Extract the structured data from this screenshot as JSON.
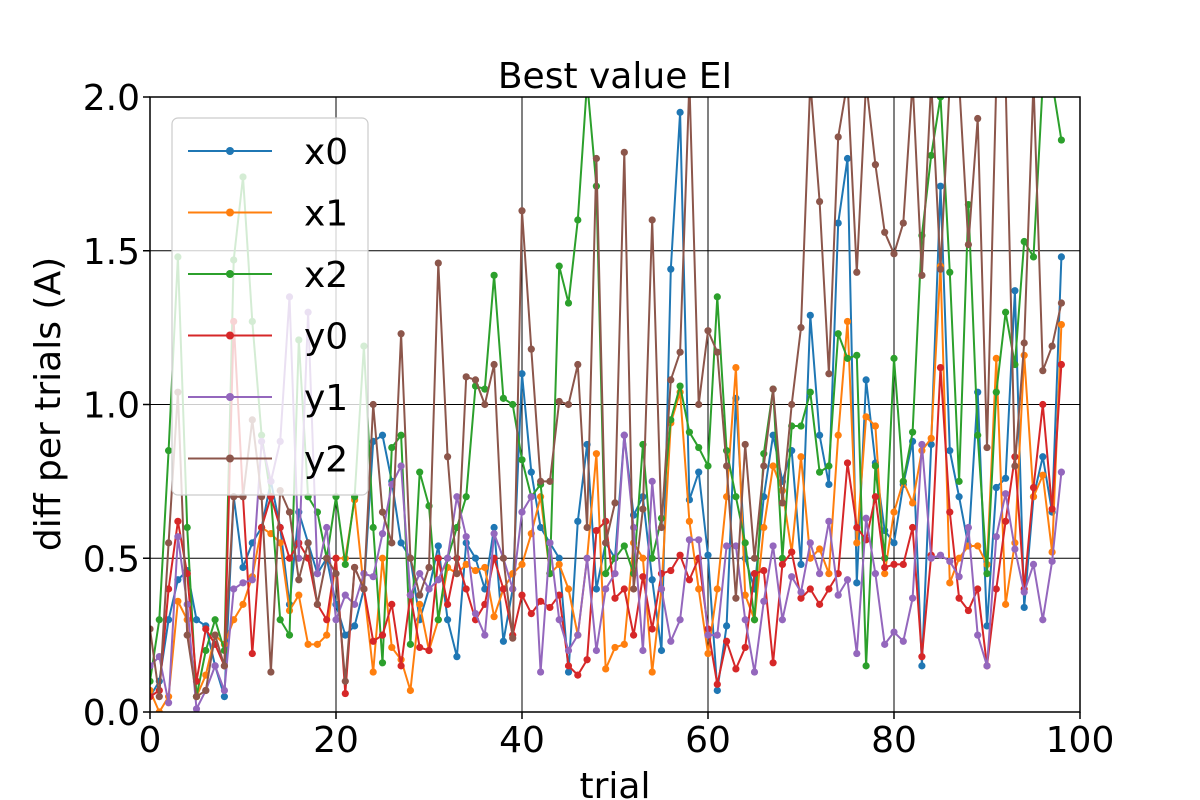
{
  "chart_data": {
    "type": "line",
    "title": "Best value EI",
    "xlabel": "trial",
    "ylabel": "diff per trials (A)",
    "xlim": [
      0,
      100
    ],
    "ylim": [
      0,
      2.0
    ],
    "xticks": [
      0,
      20,
      40,
      60,
      80,
      100
    ],
    "xtick_labels": [
      "0",
      "20",
      "40",
      "60",
      "80",
      "100"
    ],
    "yticks": [
      0.0,
      0.5,
      1.0,
      1.5,
      2.0
    ],
    "ytick_labels": [
      "0.0",
      "0.5",
      "1.0",
      "1.5",
      "2.0"
    ],
    "grid": true,
    "legend_position": "upper-left",
    "x": [
      0,
      1,
      2,
      3,
      4,
      5,
      6,
      7,
      8,
      9,
      10,
      11,
      12,
      13,
      14,
      15,
      16,
      17,
      18,
      19,
      20,
      21,
      22,
      23,
      24,
      25,
      26,
      27,
      28,
      29,
      30,
      31,
      32,
      33,
      34,
      35,
      36,
      37,
      38,
      39,
      40,
      41,
      42,
      43,
      44,
      45,
      46,
      47,
      48,
      49,
      50,
      51,
      52,
      53,
      54,
      55,
      56,
      57,
      58,
      59,
      60,
      61,
      62,
      63,
      64,
      65,
      66,
      67,
      68,
      69,
      70,
      71,
      72,
      73,
      74,
      75,
      76,
      77,
      78,
      79,
      80,
      81,
      82,
      83,
      84,
      85,
      86,
      87,
      88,
      89,
      90,
      91,
      92,
      93,
      94,
      95,
      96,
      97,
      98
    ],
    "series": [
      {
        "name": "x0",
        "color": "#1f77b4",
        "values": [
          0.05,
          0.1,
          0.3,
          0.43,
          0.46,
          0.3,
          0.28,
          0.15,
          0.05,
          0.7,
          0.47,
          0.55,
          0.6,
          0.75,
          0.6,
          0.35,
          0.65,
          0.55,
          0.45,
          0.5,
          0.35,
          0.25,
          0.28,
          0.4,
          0.88,
          0.9,
          0.75,
          0.55,
          0.5,
          0.3,
          0.4,
          0.54,
          0.3,
          0.18,
          0.55,
          0.5,
          0.4,
          0.6,
          0.23,
          0.4,
          1.1,
          0.78,
          0.6,
          0.55,
          0.5,
          0.13,
          0.62,
          0.87,
          0.4,
          0.55,
          0.5,
          0.9,
          0.64,
          0.7,
          0.43,
          0.2,
          1.44,
          1.95,
          0.69,
          0.78,
          0.51,
          0.07,
          0.28,
          1.02,
          0.5,
          0.4,
          0.7,
          0.9,
          0.75,
          0.85,
          0.48,
          1.29,
          0.9,
          0.74,
          1.59,
          1.8,
          0.42,
          1.08,
          0.81,
          0.59,
          0.55,
          0.74,
          0.88,
          0.15,
          0.87,
          1.71,
          0.85,
          0.7,
          0.54,
          1.04,
          0.28,
          0.73,
          0.76,
          1.37,
          0.34,
          0.7,
          0.83,
          0.65,
          1.48
        ]
      },
      {
        "name": "x1",
        "color": "#ff7f0e",
        "values": [
          0.07,
          0.0,
          0.05,
          0.36,
          0.3,
          0.05,
          0.12,
          0.25,
          0.22,
          0.3,
          0.35,
          0.44,
          0.6,
          0.58,
          0.55,
          0.33,
          0.38,
          0.22,
          0.22,
          0.25,
          0.5,
          0.5,
          0.69,
          0.4,
          0.13,
          0.5,
          0.21,
          0.17,
          0.07,
          0.35,
          0.2,
          0.3,
          0.47,
          0.45,
          0.48,
          0.46,
          0.47,
          0.31,
          0.4,
          0.45,
          0.48,
          0.58,
          0.7,
          0.45,
          0.48,
          0.4,
          0.25,
          0.5,
          0.84,
          0.14,
          0.21,
          0.22,
          0.55,
          0.5,
          0.13,
          0.4,
          0.94,
          1.04,
          0.62,
          0.4,
          0.19,
          0.4,
          0.7,
          1.12,
          0.38,
          0.3,
          0.6,
          0.8,
          0.72,
          0.52,
          0.83,
          0.5,
          0.53,
          0.45,
          0.9,
          1.27,
          0.55,
          0.96,
          0.93,
          0.45,
          0.65,
          0.75,
          0.68,
          0.85,
          0.89,
          1.45,
          0.42,
          0.5,
          0.54,
          0.54,
          0.48,
          1.15,
          0.35,
          0.55,
          1.16,
          0.7,
          0.77,
          0.52,
          1.26
        ]
      },
      {
        "name": "x2",
        "color": "#2ca02c",
        "values": [
          0.1,
          0.3,
          0.85,
          1.48,
          0.6,
          0.05,
          0.2,
          0.3,
          0.2,
          1.47,
          1.74,
          1.27,
          0.9,
          0.7,
          0.3,
          0.25,
          1.21,
          0.7,
          0.65,
          0.5,
          0.7,
          0.48,
          0.7,
          1.19,
          0.6,
          0.16,
          0.86,
          0.9,
          0.22,
          0.78,
          0.67,
          0.3,
          0.5,
          0.6,
          0.7,
          1.06,
          1.05,
          1.42,
          1.02,
          1.0,
          0.82,
          0.7,
          0.74,
          0.45,
          1.45,
          1.33,
          1.6,
          2.05,
          1.71,
          0.45,
          0.5,
          0.54,
          0.45,
          0.87,
          0.5,
          0.63,
          0.95,
          1.06,
          0.91,
          0.86,
          0.8,
          1.35,
          0.85,
          0.7,
          0.55,
          0.3,
          0.84,
          1.05,
          0.5,
          0.93,
          0.93,
          1.04,
          0.78,
          0.8,
          1.23,
          1.15,
          1.16,
          0.15,
          0.8,
          0.5,
          1.15,
          0.75,
          0.91,
          1.55,
          1.81,
          2.0,
          1.43,
          0.75,
          1.65,
          0.9,
          0.45,
          1.04,
          1.3,
          1.13,
          1.53,
          1.48,
          2.05,
          2.05,
          1.86
        ]
      },
      {
        "name": "y0",
        "color": "#d62728",
        "values": [
          0.05,
          0.07,
          0.4,
          0.62,
          0.45,
          0.1,
          0.27,
          0.22,
          0.15,
          1.27,
          0.7,
          0.19,
          0.6,
          0.7,
          0.6,
          0.5,
          0.55,
          0.5,
          0.35,
          0.3,
          0.5,
          0.06,
          0.47,
          0.4,
          0.23,
          0.25,
          0.35,
          0.15,
          0.38,
          0.21,
          0.2,
          0.5,
          0.35,
          0.5,
          0.4,
          0.3,
          0.35,
          0.5,
          0.4,
          0.25,
          0.38,
          0.32,
          0.36,
          0.34,
          0.38,
          0.15,
          0.12,
          0.17,
          0.59,
          0.62,
          0.37,
          0.4,
          0.25,
          0.44,
          0.27,
          0.45,
          0.46,
          0.51,
          0.43,
          0.5,
          0.27,
          0.09,
          0.23,
          0.14,
          0.21,
          0.45,
          0.46,
          0.16,
          0.48,
          0.52,
          0.37,
          0.4,
          0.35,
          0.4,
          0.45,
          0.81,
          0.6,
          0.56,
          0.7,
          0.47,
          0.48,
          0.48,
          0.6,
          0.18,
          0.51,
          1.12,
          0.65,
          0.37,
          0.33,
          0.4,
          0.15,
          0.4,
          0.62,
          0.83,
          0.4,
          0.73,
          1.0,
          0.66,
          1.13
        ]
      },
      {
        "name": "y1",
        "color": "#9467bd",
        "values": [
          0.15,
          0.18,
          0.03,
          0.57,
          0.35,
          0.01,
          0.07,
          0.15,
          0.07,
          0.4,
          0.42,
          0.43,
          0.88,
          0.75,
          0.88,
          1.35,
          0.5,
          1.3,
          0.45,
          0.6,
          0.3,
          0.38,
          0.35,
          0.45,
          0.44,
          0.58,
          0.74,
          0.8,
          0.38,
          0.45,
          0.4,
          0.43,
          0.5,
          0.7,
          0.57,
          0.32,
          0.25,
          0.58,
          0.5,
          0.4,
          0.65,
          0.7,
          0.13,
          0.55,
          0.3,
          0.2,
          0.25,
          0.5,
          0.2,
          0.4,
          0.45,
          0.9,
          0.6,
          0.2,
          0.75,
          0.4,
          0.23,
          0.3,
          0.56,
          0.56,
          0.25,
          0.25,
          0.54,
          0.54,
          0.3,
          0.13,
          0.36,
          0.54,
          0.3,
          0.44,
          0.39,
          0.55,
          0.45,
          0.62,
          0.38,
          0.43,
          0.19,
          0.63,
          0.45,
          0.22,
          0.26,
          0.23,
          0.37,
          0.87,
          0.5,
          0.51,
          0.49,
          0.44,
          0.6,
          0.25,
          0.15,
          0.57,
          0.71,
          0.53,
          0.39,
          0.48,
          0.3,
          0.49,
          0.78
        ]
      },
      {
        "name": "y2",
        "color": "#8c564b",
        "values": [
          0.27,
          0.05,
          0.55,
          1.04,
          0.25,
          0.05,
          0.07,
          0.25,
          0.15,
          0.7,
          0.7,
          0.95,
          0.7,
          0.13,
          0.72,
          0.65,
          0.43,
          0.55,
          0.35,
          0.5,
          0.45,
          0.1,
          0.47,
          0.4,
          1.0,
          0.65,
          0.55,
          1.23,
          0.5,
          0.38,
          0.47,
          1.46,
          0.83,
          0.45,
          1.09,
          1.08,
          1.0,
          1.13,
          0.5,
          0.24,
          1.63,
          1.18,
          0.75,
          0.75,
          1.01,
          1.0,
          1.13,
          0.6,
          1.8,
          0.55,
          0.68,
          1.82,
          0.4,
          0.66,
          1.6,
          0.6,
          1.08,
          1.17,
          2.05,
          1.0,
          1.24,
          1.17,
          0.8,
          0.37,
          0.87,
          0.5,
          0.8,
          1.05,
          0.68,
          1.0,
          1.25,
          2.05,
          1.66,
          1.1,
          1.87,
          2.05,
          1.43,
          2.05,
          1.78,
          1.56,
          1.49,
          1.59,
          2.05,
          1.42,
          2.05,
          1.44,
          2.05,
          2.05,
          1.52,
          1.93,
          0.86,
          2.05,
          2.05,
          0.8,
          1.2,
          2.05,
          1.11,
          1.19,
          1.33
        ]
      }
    ]
  }
}
